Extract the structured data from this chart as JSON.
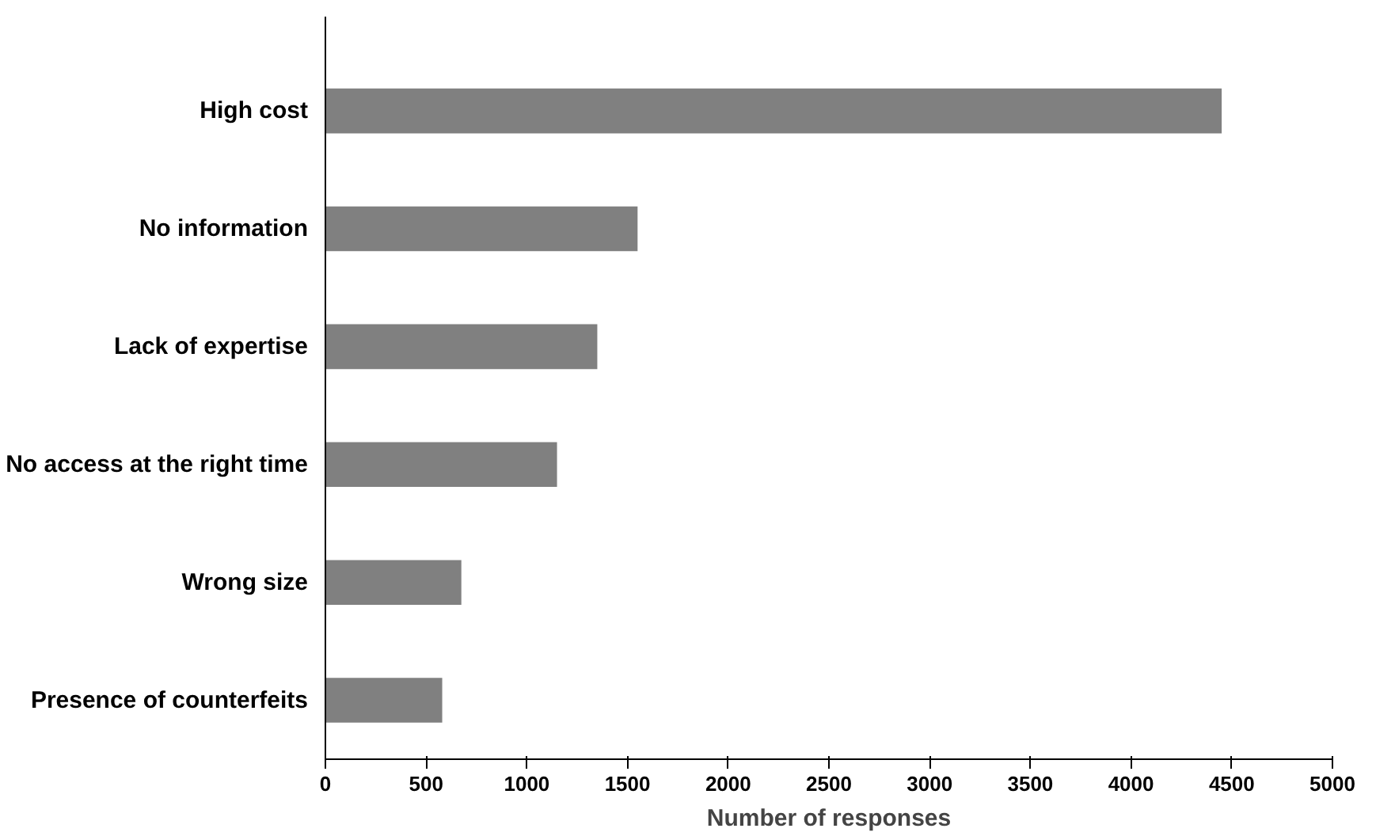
{
  "chart_data": {
    "type": "bar",
    "orientation": "horizontal",
    "xlabel": "Number of responses",
    "categories": [
      "High cost",
      "No information",
      "Lack of expertise",
      "No access at the right time",
      "Wrong size",
      "Presence of counterfeits"
    ],
    "values": [
      4450,
      1550,
      1350,
      1150,
      675,
      580
    ],
    "color": "#808080",
    "xlim": [
      0,
      5000
    ],
    "xticks": [
      0,
      500,
      1000,
      1500,
      2000,
      2500,
      3000,
      3500,
      4000,
      4500,
      5000
    ],
    "grid": false
  }
}
